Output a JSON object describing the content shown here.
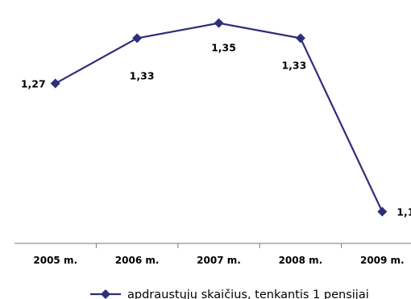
{
  "chart_data": {
    "type": "line",
    "categories": [
      "2005 m.",
      "2006 m.",
      "2007 m.",
      "2008 m.",
      "2009 m."
    ],
    "series": [
      {
        "name": "apdraustųjų skaičius, tenkantis 1 pensijai",
        "values": [
          1.27,
          1.33,
          1.35,
          1.33,
          1.1
        ],
        "labels": [
          "1,27",
          "1,33",
          "1,35",
          "1,33",
          "1,1"
        ],
        "color": "#2e2e7a",
        "marker": "diamond"
      }
    ],
    "title": "",
    "xlabel": "",
    "ylabel": "",
    "ylim": [
      1.09,
      1.355
    ],
    "grid": false,
    "y_axis_visible": false,
    "legend": "bottom"
  }
}
